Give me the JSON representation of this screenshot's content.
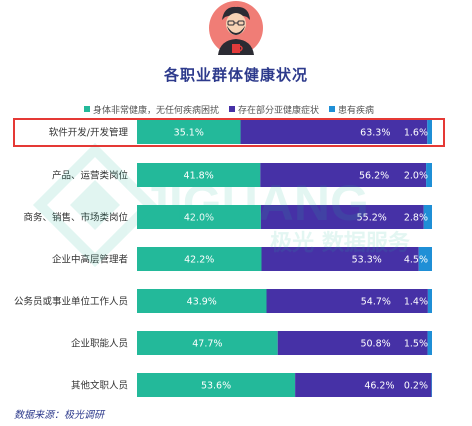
{
  "title": "各职业群体健康状况",
  "legend": [
    {
      "name": "身体非常健康，无任何疾病困扰",
      "color": "#23b99a"
    },
    {
      "name": "存在部分亚健康症状",
      "color": "#4631a6"
    },
    {
      "name": "患有疾病",
      "color": "#1f8fd6"
    }
  ],
  "watermark": {
    "brand": "JIGUANG",
    "tagline": "极光 数据服务"
  },
  "source": "数据来源：极光调研",
  "chart_data": {
    "type": "bar",
    "orientation": "horizontal",
    "stacked": true,
    "categories": [
      "软件开发/开发管理",
      "产品、运营类岗位",
      "商务、销售、市场类岗位",
      "企业中高层管理者",
      "公务员或事业单位工作人员",
      "企业职能人员",
      "其他文职人员"
    ],
    "series": [
      {
        "name": "身体非常健康，无任何疾病困扰",
        "values": [
          35.1,
          41.8,
          42.0,
          42.2,
          43.9,
          47.7,
          53.6
        ]
      },
      {
        "name": "存在部分亚健康症状",
        "values": [
          63.3,
          56.2,
          55.2,
          53.3,
          54.7,
          50.8,
          46.2
        ]
      },
      {
        "name": "患有疾病",
        "values": [
          1.6,
          2.0,
          2.8,
          4.5,
          1.4,
          1.5,
          0.2
        ]
      }
    ],
    "value_labels": [
      [
        "35.1%",
        "63.3%",
        "1.6%"
      ],
      [
        "41.8%",
        "56.2%",
        "2.0%"
      ],
      [
        "42.0%",
        "55.2%",
        "2.8%"
      ],
      [
        "42.2%",
        "53.3%",
        "4.5%"
      ],
      [
        "43.9%",
        "54.7%",
        "1.4%"
      ],
      [
        "47.7%",
        "50.8%",
        "1.5%"
      ],
      [
        "53.6%",
        "46.2%",
        "0.2%"
      ]
    ],
    "xlim": [
      0,
      100
    ],
    "highlighted_category": "软件开发/开发管理"
  }
}
